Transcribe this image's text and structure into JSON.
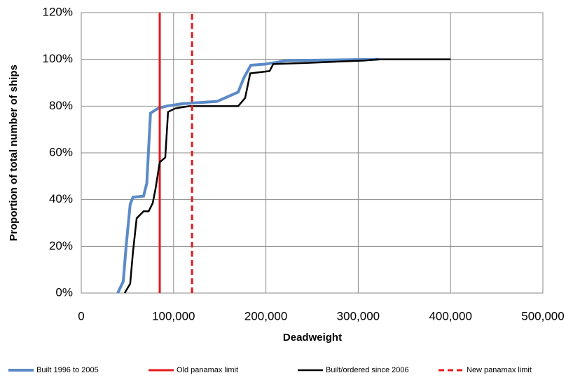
{
  "chart_data": {
    "type": "line",
    "x_label": "Deadweight",
    "y_label": "Proportion of total number of ships",
    "xlim": [
      0,
      500000
    ],
    "xticks": [
      0,
      {
        "value": 100000,
        "label": "100,000"
      },
      {
        "value": 200000,
        "label": "200,000"
      },
      {
        "value": 300000,
        "label": "300,000"
      },
      {
        "value": 400000,
        "label": "400,000"
      },
      {
        "value": 500000,
        "label": "500,000"
      }
    ],
    "ylim": [
      0,
      120
    ],
    "yticks": [
      {
        "value": 0,
        "label": "0%"
      },
      {
        "value": 20,
        "label": "20%"
      },
      {
        "value": 40,
        "label": "40%"
      },
      {
        "value": 60,
        "label": "60%"
      },
      {
        "value": 80,
        "label": "80%"
      },
      {
        "value": 100,
        "label": "100%"
      },
      {
        "value": 120,
        "label": "120%"
      }
    ],
    "grid": true,
    "legend": "bottom",
    "series": [
      {
        "name": "Built 1996 to 2005",
        "color": "#5b8ac6",
        "style": "solid",
        "width": 4,
        "x": [
          39500,
          45500,
          48600,
          53000,
          56000,
          67500,
          71000,
          75000,
          83000,
          92500,
          109000,
          147000,
          170000,
          176000,
          183600,
          200000,
          223000,
          322000
        ],
        "values": [
          0,
          5,
          20,
          38,
          41,
          41.5,
          47,
          77,
          79,
          80,
          81,
          82,
          86,
          92,
          97.5,
          98,
          99.5,
          100
        ]
      },
      {
        "name": "Old panamax limit",
        "color": "#e31a1c",
        "style": "solid",
        "width": 3,
        "x": [
          85000,
          85000
        ],
        "values": [
          0,
          120
        ]
      },
      {
        "name": "Built/ordered since 2006",
        "color": "#000000",
        "style": "solid",
        "width": 2.5,
        "x": [
          47000,
          53000,
          56000,
          60000,
          67500,
          73000,
          77400,
          80400,
          85000,
          91000,
          94000,
          101700,
          116800,
          170000,
          177500,
          183000,
          204000,
          208000,
          246000,
          306500,
          322000,
          400000
        ],
        "values": [
          0,
          4,
          17.5,
          32,
          35,
          35,
          38.5,
          44.5,
          56,
          58,
          77.5,
          79,
          80,
          80,
          83.5,
          94,
          95,
          98,
          98.5,
          99.5,
          100,
          100
        ]
      },
      {
        "name": "New panamax limit",
        "color": "#e31a1c",
        "style": "dashed",
        "width": 3,
        "x": [
          120000,
          120000
        ],
        "values": [
          0,
          120
        ]
      }
    ]
  }
}
